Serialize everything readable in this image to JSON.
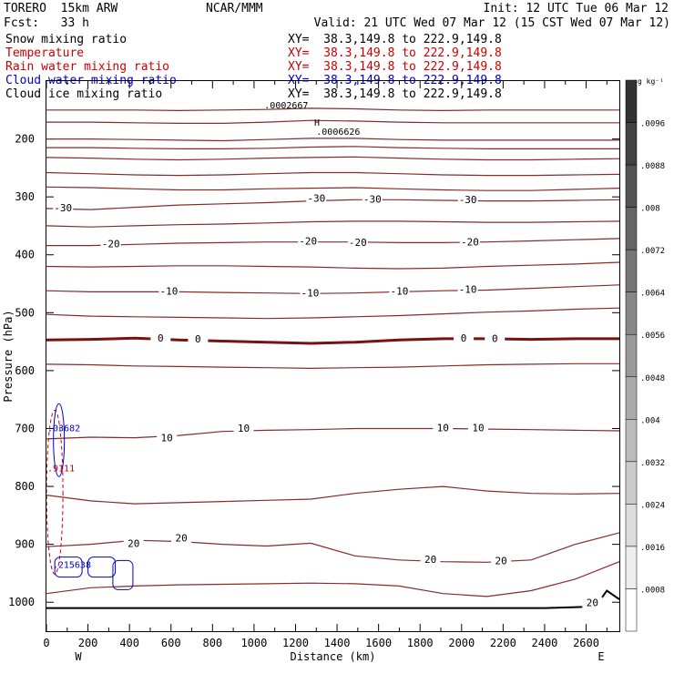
{
  "header": {
    "model": "TORERO  15km ARW",
    "center": "NCAR/MMM",
    "init": "Init: 12 UTC Tue 06 Mar 12",
    "fcst": "Fcst:   33 h",
    "valid": "Valid: 21 UTC Wed 07 Mar 12 (15 CST Wed 07 Mar 12)"
  },
  "fields": [
    {
      "label": "Snow mixing ratio",
      "xy": "XY=  38.3,149.8 to 222.9,149.8",
      "color": "#000000"
    },
    {
      "label": "Temperature",
      "xy": "XY=  38.3,149.8 to 222.9,149.8",
      "color": "#cc0000"
    },
    {
      "label": "Rain water mixing ratio",
      "xy": "XY=  38.3,149.8 to 222.9,149.8",
      "color": "#cc0000"
    },
    {
      "label": "Cloud water mixing ratio",
      "xy": "XY=  38.3,149.8 to 222.9,149.8",
      "color": "#0000cc"
    },
    {
      "label": "Cloud ice mixing ratio",
      "xy": "XY=  38.3,149.8 to 222.9,149.8",
      "color": "#000000"
    }
  ],
  "chart_data": {
    "type": "cross-section contour",
    "xlabel": "Distance (km)",
    "ylabel": "Pressure (hPa)",
    "xlim": [
      0,
      2760
    ],
    "ylim": [
      1050,
      100
    ],
    "x_ticks": [
      0,
      200,
      400,
      600,
      800,
      1000,
      1200,
      1400,
      1600,
      1800,
      2000,
      2200,
      2400,
      2600
    ],
    "y_ticks": [
      200,
      300,
      400,
      500,
      600,
      700,
      800,
      900,
      1000
    ],
    "x_endpoints": {
      "west": "W",
      "east": "E"
    },
    "colorbar": {
      "unit": "g kg⁻¹",
      "ticks": [
        ".0096",
        ".0088",
        ".008",
        ".0072",
        ".0064",
        ".0056",
        ".0048",
        ".004",
        ".0032",
        ".0024",
        ".0016",
        ".0008"
      ]
    },
    "temperature_labels": [
      {
        "text": "-30",
        "x": 80,
        "p": 320
      },
      {
        "text": "-30",
        "x": 1300,
        "p": 304
      },
      {
        "text": "-30",
        "x": 1570,
        "p": 305
      },
      {
        "text": "-30",
        "x": 2030,
        "p": 306
      },
      {
        "text": "-20",
        "x": 310,
        "p": 382
      },
      {
        "text": "-20",
        "x": 1260,
        "p": 378
      },
      {
        "text": "-20",
        "x": 1500,
        "p": 380
      },
      {
        "text": "-20",
        "x": 2040,
        "p": 379
      },
      {
        "text": "-10",
        "x": 590,
        "p": 464
      },
      {
        "text": "-10",
        "x": 1270,
        "p": 467
      },
      {
        "text": "-10",
        "x": 1700,
        "p": 464
      },
      {
        "text": "-10",
        "x": 2030,
        "p": 461
      },
      {
        "text": "0",
        "x": 550,
        "p": 545
      },
      {
        "text": "0",
        "x": 730,
        "p": 547
      },
      {
        "text": "0",
        "x": 2010,
        "p": 545
      },
      {
        "text": "0",
        "x": 2160,
        "p": 546
      },
      {
        "text": "10",
        "x": 580,
        "p": 717
      },
      {
        "text": "10",
        "x": 950,
        "p": 701
      },
      {
        "text": "10",
        "x": 1910,
        "p": 700
      },
      {
        "text": "10",
        "x": 2080,
        "p": 700
      },
      {
        "text": "20",
        "x": 420,
        "p": 900
      },
      {
        "text": "20",
        "x": 650,
        "p": 890
      },
      {
        "text": "20",
        "x": 1850,
        "p": 927
      },
      {
        "text": "20",
        "x": 2190,
        "p": 930
      },
      {
        "text": "20",
        "x": 2630,
        "p": 1002
      }
    ],
    "annotations": [
      {
        "text": ".0002667",
        "x": 1050,
        "p": 147,
        "color": "#000000"
      },
      {
        "text": "H",
        "x": 1290,
        "p": 177,
        "color": "#000000"
      },
      {
        "text": ".0006626",
        "x": 1300,
        "p": 193,
        "color": "#000000"
      },
      {
        "text": ".03682",
        "x": 0,
        "p": 705,
        "color": "#0000cc"
      },
      {
        "text": ".9111",
        "x": 0,
        "p": 774,
        "color": "#cc0000"
      },
      {
        "text": ".215638",
        "x": 30,
        "p": 941,
        "color": "#0000cc"
      }
    ],
    "snow_label_H": "H",
    "temperature_contours": [
      {
        "level": -60,
        "p": [
          150,
          150,
          150,
          151,
          150,
          149,
          147,
          148,
          150,
          151,
          150,
          150,
          150,
          150
        ]
      },
      {
        "level": -58,
        "p": [
          171,
          171,
          172,
          173,
          173,
          171,
          168,
          169,
          171,
          172,
          172,
          172,
          172,
          172
        ]
      },
      {
        "level": -56,
        "p": [
          200,
          200,
          201,
          202,
          203,
          201,
          199,
          199,
          201,
          202,
          202,
          202,
          202,
          202
        ]
      },
      {
        "level": -54,
        "p": [
          215,
          215,
          216,
          217,
          217,
          216,
          214,
          213,
          215,
          216,
          217,
          217,
          217,
          217
        ]
      },
      {
        "level": -50,
        "p": [
          232,
          233,
          235,
          236,
          235,
          233,
          232,
          231,
          233,
          235,
          236,
          236,
          235,
          234
        ]
      },
      {
        "level": -45,
        "p": [
          258,
          260,
          262,
          263,
          262,
          260,
          258,
          258,
          260,
          262,
          263,
          263,
          262,
          261
        ]
      },
      {
        "level": -40,
        "p": [
          283,
          284,
          286,
          288,
          288,
          286,
          285,
          284,
          286,
          288,
          289,
          289,
          287,
          285
        ]
      },
      {
        "level": -30,
        "p": [
          320,
          322,
          318,
          314,
          312,
          310,
          307,
          305,
          305,
          306,
          307,
          307,
          306,
          305
        ]
      },
      {
        "level": -25,
        "p": [
          350,
          352,
          350,
          348,
          347,
          345,
          343,
          342,
          342,
          343,
          344,
          344,
          343,
          342
        ]
      },
      {
        "level": -20,
        "p": [
          384,
          384,
          382,
          380,
          379,
          378,
          378,
          378,
          379,
          379,
          378,
          376,
          374,
          372
        ]
      },
      {
        "level": -15,
        "p": [
          420,
          421,
          420,
          419,
          419,
          420,
          421,
          423,
          424,
          423,
          420,
          418,
          416,
          413
        ]
      },
      {
        "level": -10,
        "p": [
          462,
          464,
          464,
          464,
          465,
          466,
          467,
          466,
          464,
          462,
          461,
          458,
          455,
          452
        ]
      },
      {
        "level": -5,
        "p": [
          503,
          506,
          507,
          508,
          509,
          510,
          509,
          507,
          505,
          502,
          499,
          497,
          494,
          492
        ]
      },
      {
        "level": 0,
        "p": [
          547,
          546,
          544,
          547,
          549,
          551,
          553,
          551,
          547,
          545,
          545,
          546,
          545,
          545
        ]
      },
      {
        "level": 5,
        "p": [
          589,
          590,
          592,
          593,
          594,
          595,
          596,
          595,
          594,
          592,
          590,
          589,
          588,
          588
        ]
      },
      {
        "level": 10,
        "p": [
          718,
          715,
          716,
          712,
          705,
          703,
          702,
          700,
          700,
          700,
          701,
          702,
          703,
          704
        ]
      },
      {
        "level": 15,
        "p": [
          815,
          825,
          830,
          828,
          826,
          824,
          822,
          812,
          805,
          800,
          808,
          812,
          813,
          812
        ]
      },
      {
        "level": 20,
        "p": [
          904,
          900,
          893,
          895,
          900,
          903,
          898,
          920,
          927,
          930,
          931,
          927,
          900,
          880
        ]
      },
      {
        "level": 25,
        "p": [
          985,
          975,
          972,
          970,
          969,
          968,
          967,
          968,
          972,
          985,
          990,
          980,
          960,
          930
        ]
      }
    ],
    "terrain": {
      "x": [
        0,
        200,
        400,
        600,
        800,
        1000,
        1200,
        1400,
        1600,
        1800,
        2000,
        2200,
        2400,
        2600,
        2660,
        2700,
        2760
      ],
      "p": [
        1010,
        1010,
        1010,
        1010,
        1010,
        1010,
        1010,
        1010,
        1010,
        1010,
        1010,
        1010,
        1010,
        1008,
        1000,
        980,
        995
      ]
    }
  }
}
